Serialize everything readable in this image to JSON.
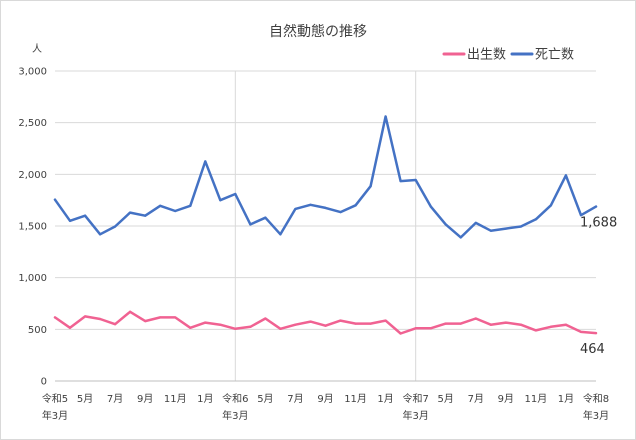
{
  "chart_data": {
    "type": "line",
    "title": "自然動態の推移",
    "ylabel": "人",
    "ylim": [
      0,
      3000
    ],
    "yticks": [
      0,
      500,
      1000,
      1500,
      2000,
      2500,
      3000
    ],
    "ytick_labels": [
      "0",
      "500",
      "1,000",
      "1,500",
      "2,000",
      "2,500",
      "3,000"
    ],
    "grid": true,
    "legend_position": "top-right",
    "x_tick_labels": [
      {
        "index": 0,
        "lines": [
          "令和5",
          "年3月"
        ]
      },
      {
        "index": 2,
        "lines": [
          "5月"
        ]
      },
      {
        "index": 4,
        "lines": [
          "7月"
        ]
      },
      {
        "index": 6,
        "lines": [
          "9月"
        ]
      },
      {
        "index": 8,
        "lines": [
          "11月"
        ]
      },
      {
        "index": 10,
        "lines": [
          "1月"
        ]
      },
      {
        "index": 12,
        "lines": [
          "令和6",
          "年3月"
        ]
      },
      {
        "index": 14,
        "lines": [
          "5月"
        ]
      },
      {
        "index": 16,
        "lines": [
          "7月"
        ]
      },
      {
        "index": 18,
        "lines": [
          "9月"
        ]
      },
      {
        "index": 20,
        "lines": [
          "11月"
        ]
      },
      {
        "index": 22,
        "lines": [
          "1月"
        ]
      },
      {
        "index": 24,
        "lines": [
          "令和7",
          "年3月"
        ]
      },
      {
        "index": 26,
        "lines": [
          "5月"
        ]
      },
      {
        "index": 28,
        "lines": [
          "7月"
        ]
      },
      {
        "index": 30,
        "lines": [
          "9月"
        ]
      },
      {
        "index": 32,
        "lines": [
          "11月"
        ]
      },
      {
        "index": 34,
        "lines": [
          "1月"
        ]
      },
      {
        "index": 36,
        "lines": [
          "令和8",
          "年3月"
        ]
      }
    ],
    "vertical_markers": [
      12,
      24
    ],
    "series": [
      {
        "name": "出生数",
        "color": "#f06292",
        "end_label": "464",
        "values": [
          615,
          515,
          625,
          600,
          550,
          670,
          580,
          615,
          615,
          515,
          565,
          545,
          505,
          525,
          605,
          505,
          545,
          575,
          535,
          585,
          555,
          555,
          585,
          460,
          510,
          510,
          555,
          555,
          605,
          545,
          565,
          545,
          490,
          525,
          545,
          475,
          464
        ]
      },
      {
        "name": "死亡数",
        "color": "#4472c4",
        "end_label": "1,688",
        "values": [
          1755,
          1550,
          1600,
          1420,
          1495,
          1630,
          1600,
          1695,
          1645,
          1695,
          2125,
          1750,
          1810,
          1515,
          1580,
          1420,
          1665,
          1705,
          1675,
          1635,
          1700,
          1885,
          2560,
          1935,
          1945,
          1690,
          1515,
          1390,
          1530,
          1455,
          1475,
          1495,
          1565,
          1700,
          1990,
          1605,
          1688
        ]
      }
    ]
  }
}
